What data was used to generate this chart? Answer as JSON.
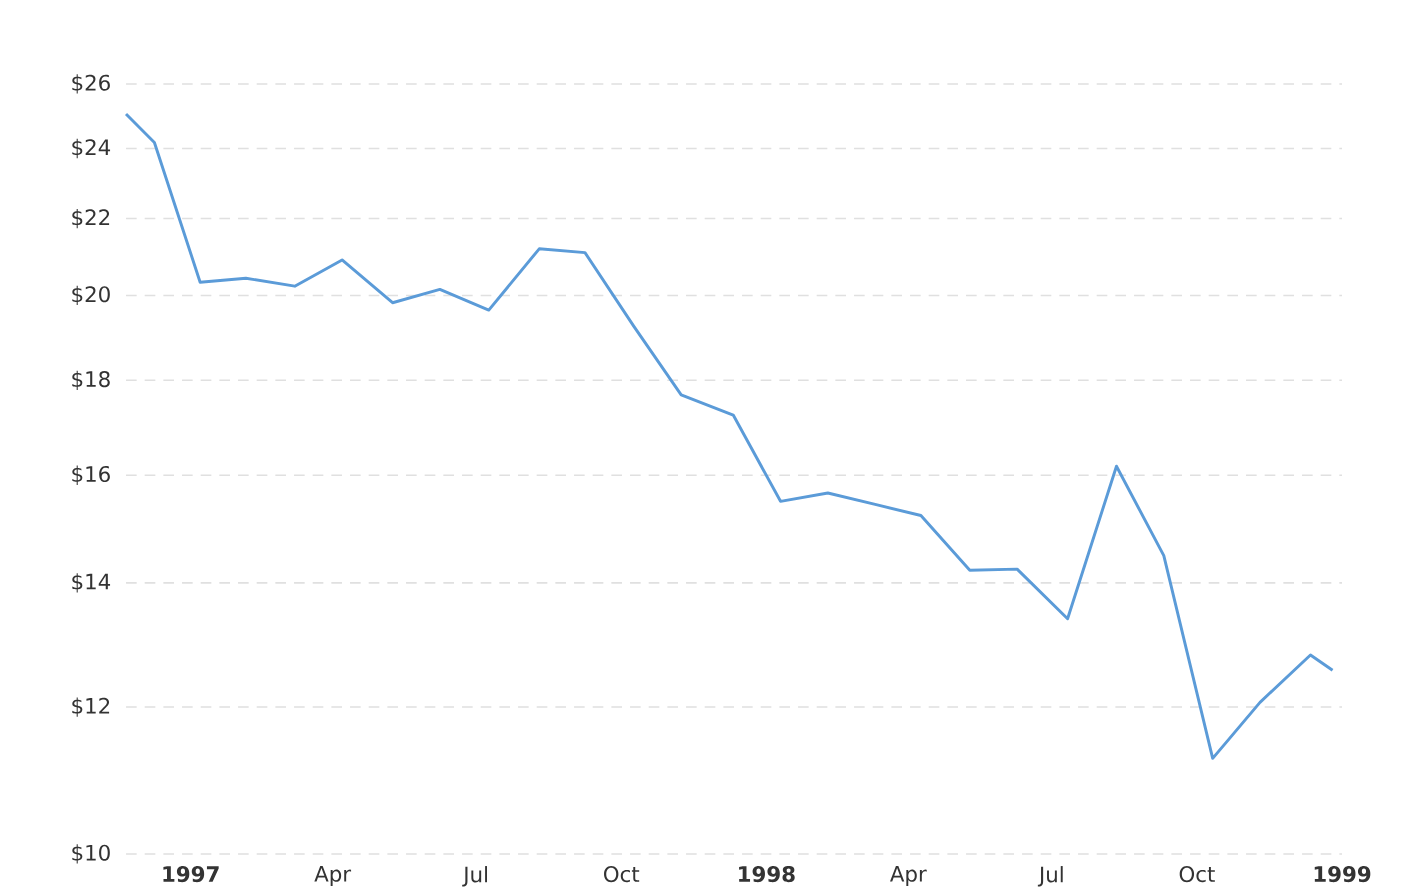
{
  "chart_data": {
    "type": "line",
    "color": "#5b9bd8",
    "log": "y",
    "grid": "y",
    "marker": "none",
    "line_style": "solid",
    "x": [
      "1996-11-21",
      "1996-12-09",
      "1997-01-07",
      "1997-02-05",
      "1997-03-08",
      "1997-04-07",
      "1997-05-09",
      "1997-06-08",
      "1997-07-09",
      "1997-08-10",
      "1997-09-08",
      "1997-10-09",
      "1997-11-08",
      "1997-12-11",
      "1998-01-10",
      "1998-02-09",
      "1998-03-11",
      "1998-04-09",
      "1998-05-10",
      "1998-06-09",
      "1998-07-11",
      "1998-08-11",
      "1998-09-10",
      "1998-10-11",
      "1998-11-10",
      "1998-12-12",
      "1998-12-26"
    ],
    "values": [
      25.05,
      24.18,
      20.33,
      20.43,
      20.23,
      20.9,
      19.82,
      20.15,
      19.64,
      21.19,
      21.09,
      19.25,
      17.68,
      17.24,
      15.49,
      15.65,
      15.43,
      15.22,
      14.22,
      14.24,
      13.39,
      16.18,
      14.48,
      11.26,
      12.07,
      12.8,
      12.56
    ],
    "xlim": [
      "1996-11-21",
      "1999-01-01"
    ],
    "xticks": [
      {
        "value": "1997-01-01",
        "label": "1997"
      },
      {
        "value": "1997-04-01",
        "label": "Apr"
      },
      {
        "value": "1997-07-01",
        "label": "Jul"
      },
      {
        "value": "1997-10-01",
        "label": "Oct"
      },
      {
        "value": "1998-01-01",
        "label": "1998"
      },
      {
        "value": "1998-04-01",
        "label": "Apr"
      },
      {
        "value": "1998-07-01",
        "label": "Jul"
      },
      {
        "value": "1998-10-01",
        "label": "Oct"
      },
      {
        "value": "1999-01-01",
        "label": "1999"
      }
    ],
    "ylim": [
      10,
      26
    ],
    "yticks": [
      {
        "value": 10,
        "label": "$10"
      },
      {
        "value": 12,
        "label": "$12"
      },
      {
        "value": 14,
        "label": "$14"
      },
      {
        "value": 16,
        "label": "$16"
      },
      {
        "value": 18,
        "label": "$18"
      },
      {
        "value": 20,
        "label": "$20"
      },
      {
        "value": 22,
        "label": "$22"
      },
      {
        "value": 24,
        "label": "$24"
      },
      {
        "value": 26,
        "label": "$26"
      }
    ]
  }
}
